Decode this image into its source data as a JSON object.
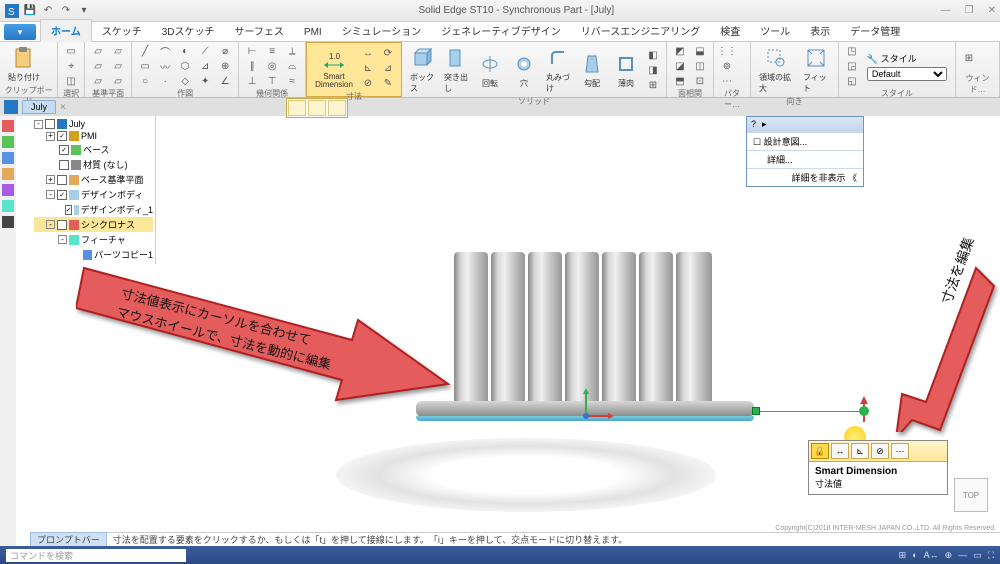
{
  "app": {
    "title": "Solid Edge ST10 - Synchronous Part - [July]"
  },
  "qat": [
    "save",
    "undo",
    "redo",
    "dropdown"
  ],
  "file_label": "ホーム",
  "tabs": [
    "ホーム",
    "スケッチ",
    "3Dスケッチ",
    "サーフェス",
    "PMI",
    "シミュレーション",
    "ジェネレーティブデザイン",
    "リバースエンジニアリング",
    "検査",
    "ツール",
    "表示",
    "データ管理"
  ],
  "active_tab": 0,
  "ribbon_groups": {
    "clipboard": {
      "label": "クリップボード",
      "paste": "貼り付け"
    },
    "select": {
      "label": "選択"
    },
    "planes": {
      "label": "基準平面"
    },
    "draw": {
      "label": "作図"
    },
    "rel": {
      "label": "幾何関係"
    },
    "dim": {
      "label": "寸法",
      "smart": "Smart\nDimension"
    },
    "solid": {
      "label": "ソリッド",
      "box": "ボックス",
      "extrude": "突き出し",
      "rev": "回転",
      "hole": "穴",
      "round": "丸みづけ",
      "draft": "勾配",
      "thin": "薄肉"
    },
    "face": {
      "label": "面相関"
    },
    "pattern": {
      "label": "パター…"
    },
    "section": {
      "label": "領域の拡大"
    },
    "orient": {
      "label": "向き",
      "fit": "フィット"
    },
    "style_group": {
      "label": "スタイル",
      "label2": "スタイル",
      "default": "Default"
    },
    "window": {
      "label": "ウィンド…"
    }
  },
  "doctab": "July",
  "tree": [
    {
      "lvl": 0,
      "exp": "-",
      "chk": false,
      "icon": "part",
      "label": "July"
    },
    {
      "lvl": 1,
      "exp": "+",
      "chk": true,
      "icon": "pmi",
      "label": "PMI"
    },
    {
      "lvl": 1,
      "exp": "",
      "chk": true,
      "icon": "base",
      "label": "ベース"
    },
    {
      "lvl": 1,
      "exp": "",
      "chk": false,
      "icon": "mat",
      "label": "材質 (なし)"
    },
    {
      "lvl": 1,
      "exp": "+",
      "chk": false,
      "icon": "plane",
      "label": "ベース基準平面"
    },
    {
      "lvl": 1,
      "exp": "-",
      "chk": true,
      "icon": "body",
      "label": "デザインボディ"
    },
    {
      "lvl": 2,
      "exp": "",
      "chk": true,
      "icon": "body",
      "label": "デザインボディ_1"
    },
    {
      "lvl": 1,
      "exp": "-",
      "chk": false,
      "icon": "sync",
      "label": "シンクロナス",
      "sel": true
    },
    {
      "lvl": 2,
      "exp": "-",
      "chk": false,
      "icon": "feat",
      "label": "フィーチャ"
    },
    {
      "lvl": 3,
      "exp": "",
      "chk": false,
      "icon": "copy",
      "label": "パーツコピー1"
    }
  ],
  "design_intent": {
    "row1": "設計意図...",
    "row2": "詳細...",
    "row3": "詳細を非表示  《"
  },
  "callout_left": {
    "line1": "寸法値表示にカーソルを合わせて",
    "line2": "マウスホイールで、寸法を動的に編集"
  },
  "callout_right": {
    "text": "寸法を編集"
  },
  "tooltip": {
    "title": "Smart Dimension",
    "sub": "寸法値"
  },
  "navcube": "TOP",
  "promptbar": {
    "label": "プロンプトバー",
    "text": "寸法を配置する要素をクリックするか、もしくは「t」を押して接線にします。　「i」キーを押して、交点モードに切り替えます。"
  },
  "statusbar": {
    "search_placeholder": "コマンドを検索"
  },
  "copyright": "Copyright(C)2018 INTER-MESH JAPAN CO.,LTD. All Rights Reserved.",
  "colors": {
    "accent": "#0078d4",
    "arrow_fill": "#e45c5c",
    "arrow_stroke": "#b02020",
    "highlight": "#ffe699",
    "green": "#2bb44d",
    "titlebar": "#e8e8e8",
    "status_grad_top": "#3b5e9c",
    "status_grad_bot": "#2a4a84"
  },
  "model": {
    "cylinders": 7,
    "cyl_width": 34,
    "cyl_height": 150,
    "base_w": 338,
    "base_h": 16
  }
}
